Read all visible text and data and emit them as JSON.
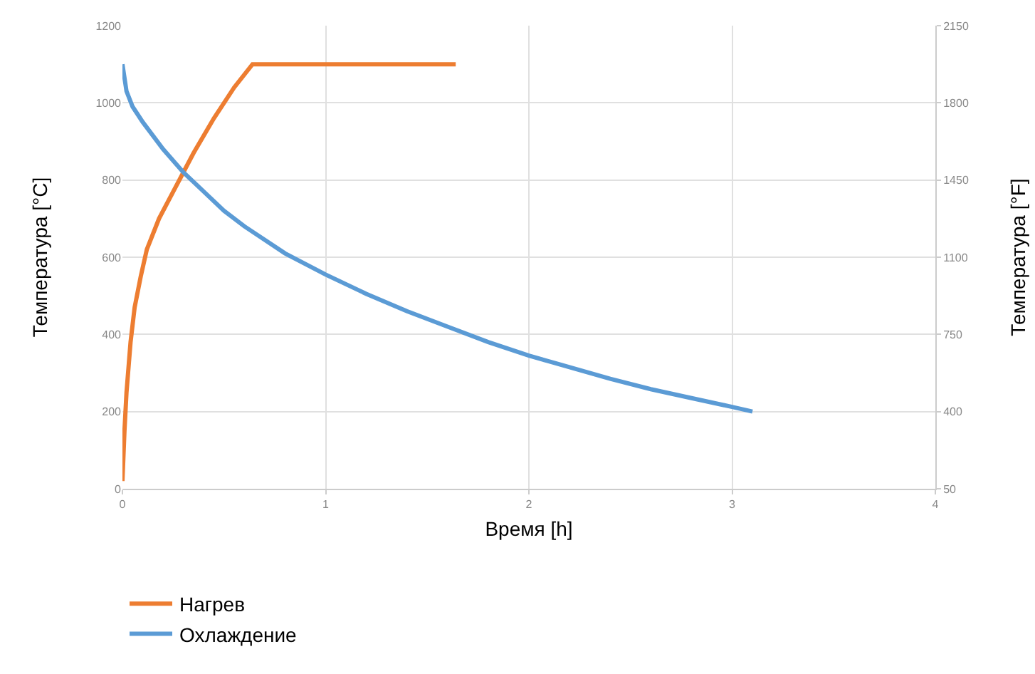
{
  "chart_data": {
    "type": "line",
    "xlabel": "Время [h]",
    "ylabel": "Температура [°C]",
    "y2label": "Температура [°F]",
    "xlim": [
      0,
      4
    ],
    "xticks": [
      0,
      1,
      2,
      3,
      4
    ],
    "ylim": [
      0,
      1200
    ],
    "yticks": [
      0,
      200,
      400,
      600,
      800,
      1000,
      1200
    ],
    "y2lim": [
      50,
      2150
    ],
    "y2ticks": [
      50,
      400,
      750,
      1100,
      1450,
      1800,
      2150
    ],
    "grid": true,
    "legend": "bottom left",
    "marker": "none",
    "line_style": "solid",
    "series": [
      {
        "name": "Нагрев",
        "color": "#ed7d31",
        "x": [
          0,
          0.01,
          0.02,
          0.04,
          0.06,
          0.09,
          0.12,
          0.18,
          0.25,
          0.35,
          0.45,
          0.55,
          0.64,
          1.64
        ],
        "values": [
          20,
          150,
          250,
          380,
          470,
          550,
          620,
          700,
          770,
          870,
          960,
          1040,
          1100,
          1100
        ]
      },
      {
        "name": "Охлаждение",
        "color": "#5b9bd5",
        "x": [
          0,
          0.02,
          0.05,
          0.1,
          0.2,
          0.3,
          0.4,
          0.5,
          0.6,
          0.8,
          1.0,
          1.2,
          1.4,
          1.6,
          1.8,
          2.0,
          2.2,
          2.4,
          2.6,
          2.8,
          3.0,
          3.1
        ],
        "values": [
          1100,
          1030,
          990,
          950,
          880,
          820,
          770,
          720,
          680,
          610,
          555,
          505,
          460,
          420,
          380,
          345,
          315,
          285,
          258,
          235,
          212,
          200
        ]
      }
    ]
  }
}
